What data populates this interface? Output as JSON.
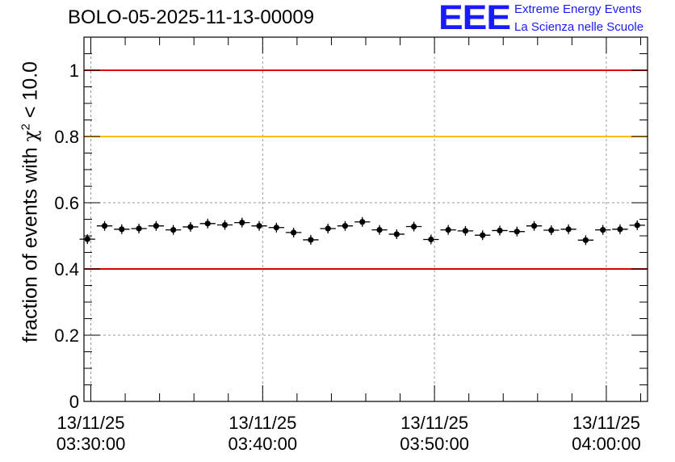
{
  "chart_data": {
    "type": "scatter",
    "title": "BOLO-05-2025-11-13-00009",
    "ylabel": "fraction of events with χ² < 10.0",
    "ylabel_parts": {
      "prefix": "fraction of events with ",
      "chi": "χ",
      "sup": "2",
      "suffix": " < 10.0"
    },
    "ylim": [
      0,
      1.1
    ],
    "y_ticks": [
      0,
      0.2,
      0.4,
      0.6,
      0.8,
      1
    ],
    "y_tick_labels": [
      "0",
      "0.2",
      "0.4",
      "0.6",
      "0.8",
      "1"
    ],
    "x_range_minutes": [
      -0.4,
      32.4
    ],
    "x_major_ticks": [
      {
        "minute": 0,
        "date": "13/11/25",
        "time": "03:30:00"
      },
      {
        "minute": 10,
        "date": "13/11/25",
        "time": "03:40:00"
      },
      {
        "minute": 20,
        "date": "13/11/25",
        "time": "03:50:00"
      },
      {
        "minute": 30,
        "date": "13/11/25",
        "time": "04:00:00"
      }
    ],
    "x_minor_step_minutes": 2,
    "grid": true,
    "reference_lines": [
      {
        "y": 1.0,
        "color": "#e00000"
      },
      {
        "y": 0.8,
        "color": "#ffbf00"
      },
      {
        "y": 0.4,
        "color": "#e00000"
      }
    ],
    "series": [
      {
        "name": "fraction",
        "x_start_minute": -0.2,
        "x_step_minutes": 1.0,
        "values": [
          0.49,
          0.53,
          0.52,
          0.522,
          0.53,
          0.518,
          0.527,
          0.537,
          0.533,
          0.54,
          0.53,
          0.525,
          0.51,
          0.488,
          0.522,
          0.53,
          0.542,
          0.518,
          0.505,
          0.528,
          0.489,
          0.518,
          0.515,
          0.502,
          0.516,
          0.513,
          0.53,
          0.517,
          0.52,
          0.487,
          0.518,
          0.52,
          0.532
        ]
      }
    ]
  },
  "logo": {
    "mark": "EEE",
    "line1": "Extreme Energy Events",
    "line2": "La Scienza nelle Scuole",
    "color": "#1a1aff"
  }
}
